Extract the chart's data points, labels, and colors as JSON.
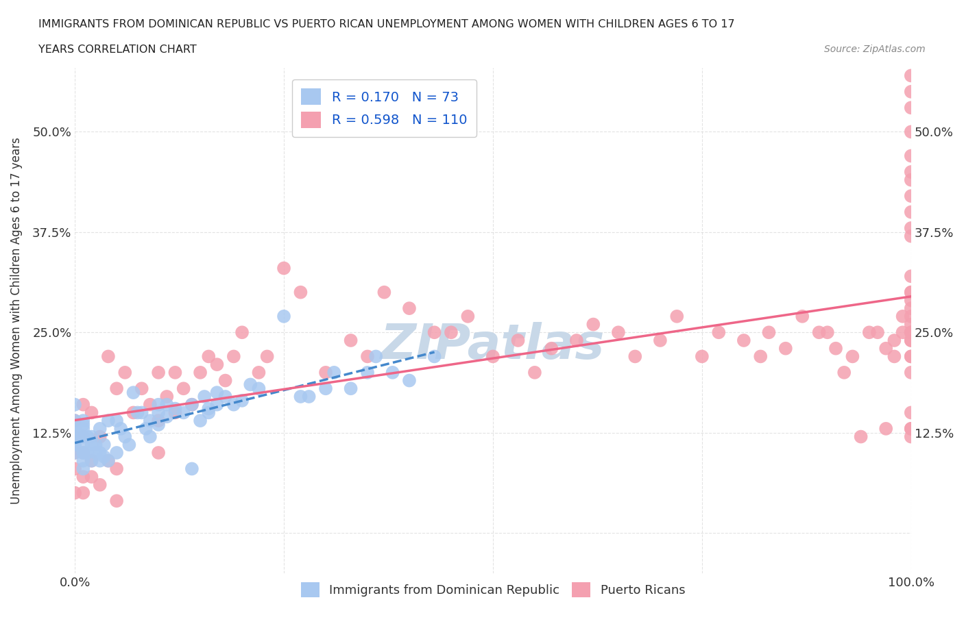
{
  "title_line1": "IMMIGRANTS FROM DOMINICAN REPUBLIC VS PUERTO RICAN UNEMPLOYMENT AMONG WOMEN WITH CHILDREN AGES 6 TO 17",
  "title_line2": "YEARS CORRELATION CHART",
  "source_text": "Source: ZipAtlas.com",
  "xlabel": "",
  "ylabel": "Unemployment Among Women with Children Ages 6 to 17 years",
  "xlim": [
    0.0,
    1.0
  ],
  "ylim": [
    -0.05,
    0.58
  ],
  "xticks": [
    0.0,
    0.25,
    0.5,
    0.75,
    1.0
  ],
  "xticklabels": [
    "0.0%",
    "",
    "",
    "",
    "100.0%"
  ],
  "yticks": [
    0.0,
    0.125,
    0.25,
    0.375,
    0.5
  ],
  "yticklabels": [
    "",
    "12.5%",
    "25.0%",
    "37.5%",
    "50.0%"
  ],
  "blue_R": 0.17,
  "blue_N": 73,
  "pink_R": 0.598,
  "pink_N": 110,
  "blue_color": "#a8c8f0",
  "pink_color": "#f4a0b0",
  "blue_line_color": "#4488cc",
  "pink_line_color": "#ee6688",
  "watermark_text": "ZIPatlas",
  "watermark_color": "#c8d8e8",
  "background_color": "#ffffff",
  "grid_color": "#dddddd",
  "title_color": "#222222",
  "label_color": "#333333",
  "legend_r_color": "#1155cc",
  "blue_scatter_x": [
    0.0,
    0.0,
    0.0,
    0.0,
    0.0,
    0.0,
    0.0,
    0.0,
    0.01,
    0.01,
    0.01,
    0.01,
    0.01,
    0.01,
    0.01,
    0.01,
    0.01,
    0.015,
    0.015,
    0.02,
    0.02,
    0.02,
    0.025,
    0.025,
    0.03,
    0.03,
    0.03,
    0.035,
    0.035,
    0.04,
    0.04,
    0.05,
    0.05,
    0.055,
    0.06,
    0.065,
    0.07,
    0.075,
    0.08,
    0.085,
    0.09,
    0.09,
    0.1,
    0.1,
    0.1,
    0.11,
    0.11,
    0.12,
    0.13,
    0.14,
    0.14,
    0.15,
    0.155,
    0.16,
    0.16,
    0.17,
    0.17,
    0.18,
    0.19,
    0.2,
    0.21,
    0.22,
    0.25,
    0.27,
    0.28,
    0.3,
    0.31,
    0.33,
    0.35,
    0.36,
    0.38,
    0.4,
    0.43
  ],
  "blue_scatter_y": [
    0.1,
    0.11,
    0.11,
    0.12,
    0.125,
    0.13,
    0.14,
    0.16,
    0.08,
    0.09,
    0.1,
    0.1,
    0.11,
    0.12,
    0.13,
    0.135,
    0.14,
    0.1,
    0.12,
    0.09,
    0.11,
    0.12,
    0.1,
    0.11,
    0.09,
    0.1,
    0.13,
    0.095,
    0.11,
    0.09,
    0.14,
    0.1,
    0.14,
    0.13,
    0.12,
    0.11,
    0.175,
    0.15,
    0.15,
    0.13,
    0.12,
    0.14,
    0.135,
    0.15,
    0.16,
    0.145,
    0.16,
    0.155,
    0.15,
    0.08,
    0.16,
    0.14,
    0.17,
    0.15,
    0.155,
    0.16,
    0.175,
    0.17,
    0.16,
    0.165,
    0.185,
    0.18,
    0.27,
    0.17,
    0.17,
    0.18,
    0.2,
    0.18,
    0.2,
    0.22,
    0.2,
    0.19,
    0.22
  ],
  "pink_scatter_x": [
    0.0,
    0.0,
    0.0,
    0.0,
    0.0,
    0.01,
    0.01,
    0.01,
    0.01,
    0.01,
    0.02,
    0.02,
    0.02,
    0.03,
    0.03,
    0.04,
    0.04,
    0.05,
    0.05,
    0.05,
    0.06,
    0.07,
    0.08,
    0.09,
    0.1,
    0.1,
    0.1,
    0.11,
    0.12,
    0.12,
    0.13,
    0.14,
    0.15,
    0.16,
    0.17,
    0.18,
    0.19,
    0.2,
    0.22,
    0.23,
    0.25,
    0.27,
    0.3,
    0.33,
    0.35,
    0.37,
    0.4,
    0.43,
    0.45,
    0.47,
    0.5,
    0.53,
    0.55,
    0.57,
    0.6,
    0.62,
    0.65,
    0.67,
    0.7,
    0.72,
    0.75,
    0.77,
    0.8,
    0.82,
    0.83,
    0.85,
    0.87,
    0.89,
    0.9,
    0.91,
    0.92,
    0.93,
    0.94,
    0.95,
    0.96,
    0.97,
    0.97,
    0.98,
    0.98,
    0.99,
    0.99,
    1.0,
    1.0,
    1.0,
    1.0,
    1.0,
    1.0,
    1.0,
    1.0,
    1.0,
    1.0,
    1.0,
    1.0,
    1.0,
    1.0,
    1.0,
    1.0,
    1.0,
    1.0,
    1.0,
    1.0,
    1.0,
    1.0,
    1.0,
    1.0,
    1.0,
    1.0,
    1.0,
    1.0,
    1.0
  ],
  "pink_scatter_y": [
    0.05,
    0.08,
    0.1,
    0.12,
    0.14,
    0.05,
    0.07,
    0.1,
    0.12,
    0.16,
    0.07,
    0.09,
    0.15,
    0.06,
    0.12,
    0.09,
    0.22,
    0.04,
    0.08,
    0.18,
    0.2,
    0.15,
    0.18,
    0.16,
    0.1,
    0.14,
    0.2,
    0.17,
    0.15,
    0.2,
    0.18,
    0.16,
    0.2,
    0.22,
    0.21,
    0.19,
    0.22,
    0.25,
    0.2,
    0.22,
    0.33,
    0.3,
    0.2,
    0.24,
    0.22,
    0.3,
    0.28,
    0.25,
    0.25,
    0.27,
    0.22,
    0.24,
    0.2,
    0.23,
    0.24,
    0.26,
    0.25,
    0.22,
    0.24,
    0.27,
    0.22,
    0.25,
    0.24,
    0.22,
    0.25,
    0.23,
    0.27,
    0.25,
    0.25,
    0.23,
    0.2,
    0.22,
    0.12,
    0.25,
    0.25,
    0.13,
    0.23,
    0.24,
    0.22,
    0.25,
    0.27,
    0.12,
    0.13,
    0.13,
    0.15,
    0.2,
    0.22,
    0.22,
    0.24,
    0.24,
    0.25,
    0.25,
    0.26,
    0.27,
    0.28,
    0.29,
    0.3,
    0.3,
    0.32,
    0.37,
    0.38,
    0.4,
    0.42,
    0.44,
    0.45,
    0.47,
    0.5,
    0.53,
    0.55,
    0.57
  ]
}
